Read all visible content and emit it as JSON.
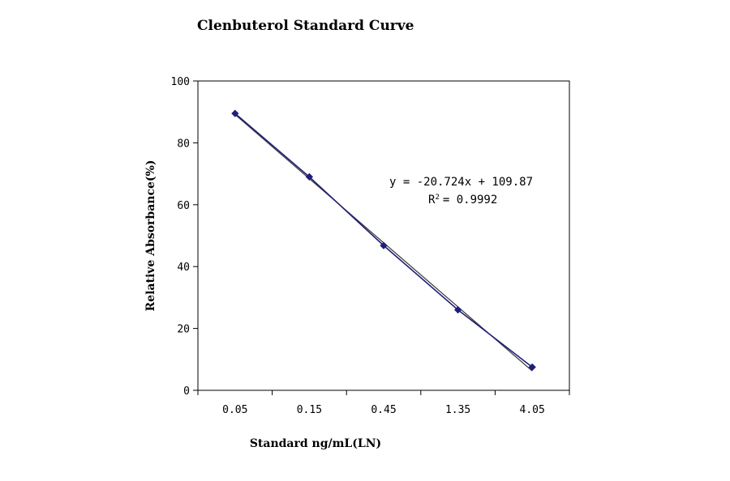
{
  "chart_data": {
    "type": "scatter",
    "title": "Clenbuterol Standard Curve",
    "xlabel": "Standard ng/mL(LN)",
    "ylabel": "Relative Absorbance(%)",
    "categories": [
      "0.05",
      "0.15",
      "0.45",
      "1.35",
      "4.05"
    ],
    "x": [
      0.05,
      0.15,
      0.45,
      1.35,
      4.05
    ],
    "ylim": [
      0,
      100
    ],
    "yticks": [
      0,
      20,
      40,
      60,
      80,
      100
    ],
    "yticklabels": [
      "0",
      "20",
      "40",
      "60",
      "80",
      "100"
    ],
    "series": [
      {
        "values": [
          89.5,
          69.0,
          46.8,
          26.0,
          7.5
        ]
      }
    ],
    "trendline": {
      "slope": -20.724,
      "intercept": 109.87,
      "equation": "y = -20.724x + 109.87",
      "r2_label": "R",
      "r2_sup": "2",
      "r2_value": "= 0.9992"
    },
    "grid": false,
    "legend": "none",
    "colors": {
      "marker": "#1f1f7a",
      "line": "#1f1f7a",
      "trend": "#3a3a3a",
      "axis": "#000000"
    }
  }
}
